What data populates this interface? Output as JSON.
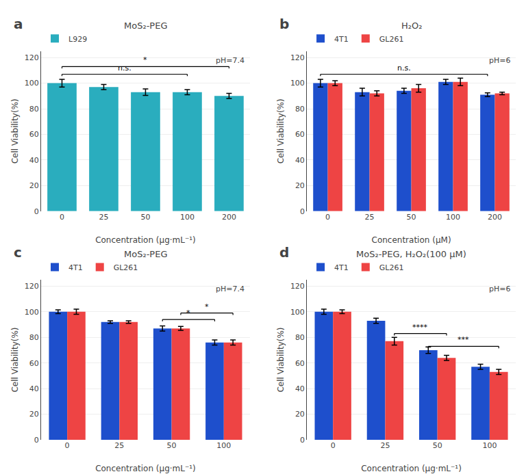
{
  "chart_data": [
    {
      "type": "bar",
      "label": "a",
      "title": "MoS₂-PEG",
      "categories": [
        "0",
        "25",
        "50",
        "100",
        "200"
      ],
      "series": [
        {
          "name": "L929",
          "color": "#2AADBE",
          "values": [
            100,
            97,
            93,
            93,
            90
          ],
          "errors": [
            3,
            2,
            2.5,
            2,
            2
          ]
        }
      ],
      "xlabel": "Concentration (μg·mL⁻¹)",
      "ylabel": "Cell Viability(%)",
      "ylim": [
        0,
        125
      ],
      "yticks": [
        0,
        20,
        40,
        60,
        80,
        100,
        120
      ],
      "grid": true,
      "legend": "upper left",
      "annotations": [
        {
          "text": "pH=7.4"
        },
        {
          "text": "n.s.",
          "from": {
            "category": "0"
          },
          "to": {
            "category": "100"
          },
          "y": 107
        },
        {
          "text": "*",
          "from": {
            "category": "0"
          },
          "to": {
            "category": "200"
          },
          "y": 113
        }
      ]
    },
    {
      "type": "bar",
      "label": "b",
      "title": "H₂O₂",
      "categories": [
        "0",
        "25",
        "50",
        "100",
        "200"
      ],
      "series": [
        {
          "name": "4T1",
          "color": "#1E4FCC",
          "values": [
            100,
            93,
            94,
            101,
            91
          ],
          "errors": [
            3,
            3,
            2,
            2,
            1.5
          ]
        },
        {
          "name": "GL261",
          "color": "#EE4444",
          "values": [
            100,
            92,
            96,
            101,
            92
          ],
          "errors": [
            2,
            2,
            3,
            3,
            1
          ]
        }
      ],
      "xlabel": "Concentration (μM)",
      "ylabel": "Cell Viability(%)",
      "ylim": [
        0,
        125
      ],
      "yticks": [
        0,
        20,
        40,
        60,
        80,
        100,
        120
      ],
      "grid": true,
      "legend": "upper left",
      "annotations": [
        {
          "text": "pH=6"
        },
        {
          "text": "n.s.",
          "from": {
            "category": "0",
            "series": "4T1"
          },
          "to": {
            "category": "200",
            "series": "4T1"
          },
          "y": 107
        }
      ]
    },
    {
      "type": "bar",
      "label": "c",
      "title": "MoS₂-PEG",
      "categories": [
        "0",
        "25",
        "50",
        "100"
      ],
      "series": [
        {
          "name": "4T1",
          "color": "#1E4FCC",
          "values": [
            100,
            92,
            87,
            76
          ],
          "errors": [
            1.5,
            1,
            2,
            2
          ]
        },
        {
          "name": "GL261",
          "color": "#EE4444",
          "values": [
            100,
            92,
            87,
            76
          ],
          "errors": [
            2,
            1,
            1.5,
            2
          ]
        }
      ],
      "xlabel": "Concentration (μg·mL⁻¹)",
      "ylabel": "Cell Viability(%)",
      "ylim": [
        0,
        125
      ],
      "yticks": [
        0,
        20,
        40,
        60,
        80,
        100,
        120
      ],
      "grid": true,
      "legend": "upper left",
      "annotations": [
        {
          "text": "pH=7.4"
        },
        {
          "text": "*",
          "from": {
            "category": "50",
            "series": "4T1"
          },
          "to": {
            "category": "100",
            "series": "4T1"
          },
          "y": 94
        },
        {
          "text": "*",
          "from": {
            "category": "50",
            "series": "GL261"
          },
          "to": {
            "category": "100",
            "series": "GL261"
          },
          "y": 99
        }
      ]
    },
    {
      "type": "bar",
      "label": "d",
      "title": "MoS₂-PEG, H₂O₂(100 μM)",
      "categories": [
        "0",
        "25",
        "50",
        "100"
      ],
      "series": [
        {
          "name": "4T1",
          "color": "#1E4FCC",
          "values": [
            100,
            93,
            70,
            57
          ],
          "errors": [
            2,
            2,
            2.5,
            2
          ]
        },
        {
          "name": "GL261",
          "color": "#EE4444",
          "values": [
            100,
            77,
            64,
            53
          ],
          "errors": [
            1.5,
            3,
            2,
            2
          ]
        }
      ],
      "xlabel": "Concentration (μg·mL⁻¹)",
      "ylabel": "Cell Viability(%)",
      "ylim": [
        0,
        125
      ],
      "yticks": [
        0,
        20,
        40,
        60,
        80,
        100,
        120
      ],
      "grid": true,
      "legend": "upper left",
      "annotations": [
        {
          "text": "pH=6"
        },
        {
          "text": "****",
          "from": {
            "category": "25",
            "series": "GL261"
          },
          "to": {
            "category": "50",
            "series": "GL261"
          },
          "y": 83
        },
        {
          "text": "***",
          "from": {
            "category": "50",
            "series": "4T1"
          },
          "to": {
            "category": "100",
            "series": "GL261"
          },
          "y": 73
        }
      ]
    }
  ]
}
